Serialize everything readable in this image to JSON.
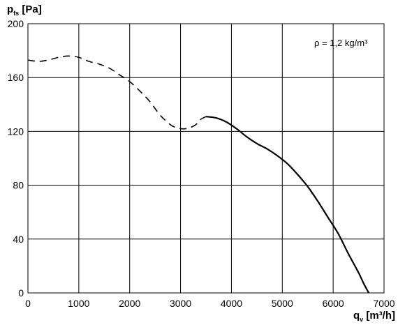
{
  "chart_data": {
    "type": "line",
    "title": "",
    "annotation": "ρ = 1,2 kg/m³",
    "ylabel": {
      "main": "p",
      "sub": "fs",
      "unit": " [Pa]"
    },
    "xlabel": {
      "main": "q",
      "sub": "v",
      "unit": " [m³/h]"
    },
    "xlim": [
      0,
      7000
    ],
    "ylim": [
      0,
      200
    ],
    "x_ticks": [
      0,
      1000,
      2000,
      3000,
      4000,
      5000,
      6000,
      7000
    ],
    "y_ticks": [
      0,
      40,
      80,
      120,
      160,
      200
    ],
    "x_tick_labels": [
      "0",
      "1000",
      "2000",
      "3000",
      "4000",
      "5000",
      "6000",
      "7000"
    ],
    "y_tick_labels": [
      "0",
      "40",
      "80",
      "120",
      "160",
      "200"
    ],
    "grid": true,
    "series": [
      {
        "style": "dashed",
        "x": [
          0,
          200,
          400,
          600,
          800,
          1000,
          1200,
          1400,
          1600,
          1800,
          2000,
          2200,
          2400,
          2600,
          2800,
          2900,
          3000,
          3100,
          3200,
          3300,
          3400,
          3500
        ],
        "y": [
          173,
          172,
          173,
          175,
          176,
          175,
          172,
          170,
          167,
          162,
          157,
          150,
          142,
          132,
          125,
          123,
          122,
          122,
          123,
          125,
          129,
          131
        ]
      },
      {
        "style": "solid",
        "x": [
          3500,
          3700,
          3900,
          4100,
          4300,
          4500,
          4700,
          4900,
          5100,
          5300,
          5500,
          5700,
          5900,
          6100,
          6300,
          6500,
          6600,
          6700
        ],
        "y": [
          131,
          130,
          127,
          122,
          116,
          111,
          107,
          102,
          96,
          88,
          79,
          68,
          56,
          44,
          29,
          15,
          7,
          0
        ]
      }
    ]
  }
}
